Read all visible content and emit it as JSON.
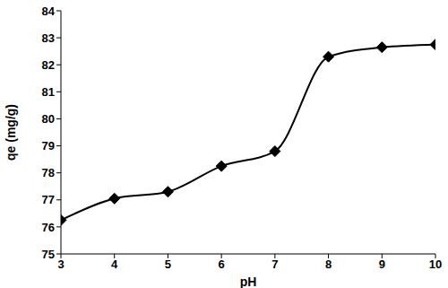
{
  "chart_data": {
    "type": "line",
    "xlabel": "pH",
    "ylabel": "qe (mg/g)",
    "x": [
      3,
      4,
      5,
      6,
      7,
      8,
      9,
      10
    ],
    "values": [
      76.25,
      77.05,
      77.3,
      78.25,
      78.8,
      82.3,
      82.65,
      82.75
    ],
    "color": "#000000",
    "marker": "diamond",
    "xlim": [
      3,
      10
    ],
    "ylim": [
      75,
      84
    ],
    "xticks": [
      3,
      4,
      5,
      6,
      7,
      8,
      9,
      10
    ],
    "yticks": [
      75,
      76,
      77,
      78,
      79,
      80,
      81,
      82,
      83,
      84
    ],
    "grid": false
  }
}
